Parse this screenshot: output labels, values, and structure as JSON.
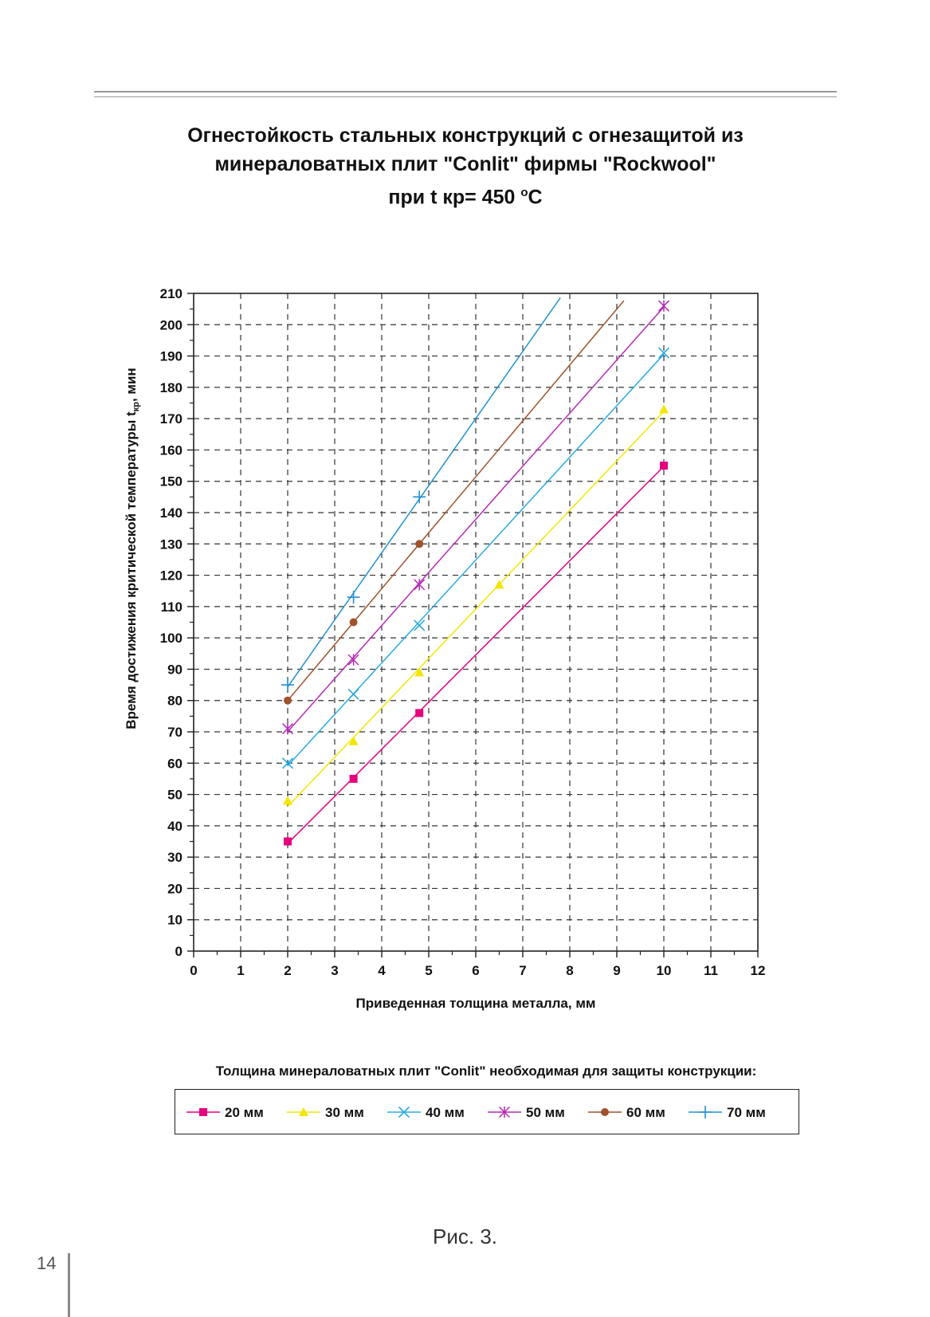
{
  "title": {
    "line1": "Огнестойкость стальных конструкций с огнезащитой из",
    "line2": "минераловатных плит \"Conlit\" фирмы \"Rockwool\"",
    "line3_prefix": "при t кр= 450 ",
    "line3_sup": "o",
    "line3_suffix": "C"
  },
  "legend_caption": "Толщина минераловатных плит \"Conlit\" необходимая для защиты конструкции:",
  "figure_caption": "Рис. 3.",
  "page_number": "14",
  "chart_data": {
    "type": "line",
    "xlabel": "Приведенная толщина металла, мм",
    "ylabel": "Время достижения критической температуры t",
    "ylabel_sub": "кр",
    "ylabel_suffix": ", мин",
    "xlim": [
      0,
      12
    ],
    "ylim": [
      0,
      210
    ],
    "x_ticks": [
      0,
      1,
      2,
      3,
      4,
      5,
      6,
      7,
      8,
      9,
      10,
      11,
      12
    ],
    "y_ticks": [
      0,
      10,
      20,
      30,
      40,
      50,
      60,
      70,
      80,
      90,
      100,
      110,
      120,
      130,
      140,
      150,
      160,
      170,
      180,
      190,
      200,
      210
    ],
    "grid": true,
    "grid_style": "dashed",
    "legend_position": "bottom",
    "series": [
      {
        "name": "20 мм",
        "color": "#e6007e",
        "marker": "square",
        "points": [
          [
            2,
            35
          ],
          [
            3.4,
            55
          ],
          [
            4.8,
            76
          ],
          [
            10,
            155
          ]
        ],
        "line_extent": [
          2,
          10
        ]
      },
      {
        "name": "30 мм",
        "color": "#f2e600",
        "marker": "triangle",
        "points": [
          [
            2,
            48
          ],
          [
            3.4,
            67
          ],
          [
            4.8,
            89
          ],
          [
            6.5,
            117
          ],
          [
            10,
            173
          ]
        ],
        "line_extent": [
          2,
          10
        ]
      },
      {
        "name": "40 мм",
        "color": "#29aae1",
        "marker": "x",
        "points": [
          [
            2,
            60
          ],
          [
            3.4,
            82
          ],
          [
            4.8,
            104
          ],
          [
            10,
            191
          ]
        ],
        "line_extent": [
          2,
          10
        ]
      },
      {
        "name": "50 мм",
        "color": "#b52ab5",
        "marker": "star",
        "points": [
          [
            2,
            71
          ],
          [
            3.4,
            93
          ],
          [
            4.8,
            117
          ],
          [
            10,
            206
          ]
        ],
        "line_extent": [
          2,
          10
        ]
      },
      {
        "name": "60 мм",
        "color": "#a0522d",
        "marker": "circle",
        "points": [
          [
            2,
            80
          ],
          [
            3.4,
            105
          ],
          [
            4.8,
            130
          ]
        ],
        "line_extent": [
          2,
          9.15
        ]
      },
      {
        "name": "70 мм",
        "color": "#2290d0",
        "marker": "plus",
        "points": [
          [
            2,
            85
          ],
          [
            3.4,
            113
          ],
          [
            4.8,
            145
          ]
        ],
        "line_extent": [
          2,
          7.8
        ]
      }
    ]
  }
}
